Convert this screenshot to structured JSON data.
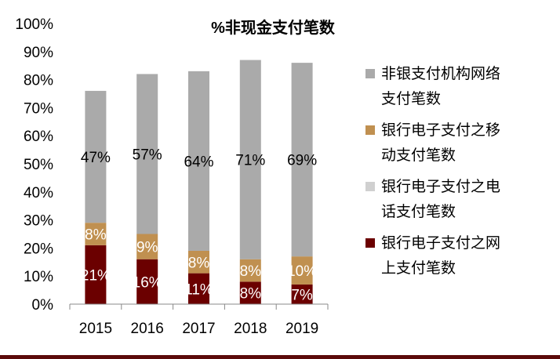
{
  "chart_data": {
    "type": "bar",
    "stacked": true,
    "title": "%非现金支付笔数",
    "categories": [
      "2015",
      "2016",
      "2017",
      "2018",
      "2019"
    ],
    "ylim": [
      0,
      100
    ],
    "yticks": [
      "0%",
      "10%",
      "20%",
      "30%",
      "40%",
      "50%",
      "60%",
      "70%",
      "80%",
      "90%",
      "100%"
    ],
    "grid": false,
    "legend_position": "right",
    "series": [
      {
        "name": "银行电子支付之网上支付笔数",
        "color": "#6b0000",
        "values": [
          21,
          16,
          11,
          8,
          7
        ],
        "labels": [
          "21%",
          "16%",
          "11%",
          "8%",
          "7%"
        ],
        "label_color": "#ffffff"
      },
      {
        "name": "银行电子支付之电话支付笔数",
        "color": "#d0d0d0",
        "values": [
          0,
          0,
          0,
          0,
          0
        ],
        "labels": [
          "",
          "",
          "",
          "",
          ""
        ]
      },
      {
        "name": "银行电子支付之移动支付笔数",
        "color": "#c09050",
        "values": [
          8,
          9,
          8,
          8,
          10
        ],
        "labels": [
          "8%",
          "9%",
          "8%",
          "8%",
          "10%"
        ],
        "label_color": "#ffffff"
      },
      {
        "name": "非银支付机构网络支付笔数",
        "color": "#aaaaaa",
        "values": [
          47,
          57,
          64,
          71,
          69
        ],
        "labels": [
          "47%",
          "57%",
          "64%",
          "71%",
          "69%"
        ],
        "label_color": "#000000"
      }
    ],
    "legend_lines": [
      [
        "非银支付机构网络",
        "支付笔数"
      ],
      [
        "银行电子支付之移",
        "动支付笔数"
      ],
      [
        "银行电子支付之电",
        "话支付笔数"
      ],
      [
        "银行电子支付之网",
        "上支付笔数"
      ]
    ]
  },
  "colors": {
    "bottom_rule": "#5c0a0a"
  }
}
